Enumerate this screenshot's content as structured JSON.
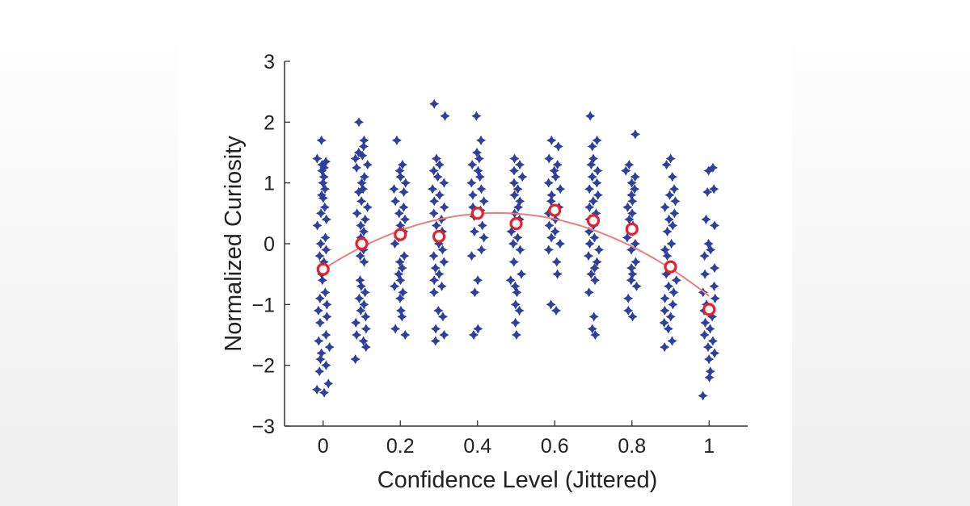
{
  "chart_data": {
    "type": "scatter",
    "xlabel": "Confidence Level (Jittered)",
    "ylabel": "Normalized Curiosity",
    "xlim": [
      -0.1,
      1.1
    ],
    "ylim": [
      -3,
      3
    ],
    "x_ticks": [
      0,
      0.2,
      0.4,
      0.6,
      0.8,
      1
    ],
    "x_tick_labels": [
      "0",
      "0.2",
      "0.4",
      "0.6",
      "0.8",
      "1"
    ],
    "y_ticks": [
      -3,
      -2,
      -1,
      0,
      1,
      2,
      3
    ],
    "y_tick_labels": [
      "−3",
      "−2",
      "−1",
      "0",
      "1",
      "2",
      "3"
    ],
    "grid": false,
    "colors": {
      "scatter": "#2e3f9e",
      "means_stroke": "#e8202a",
      "fit_line": "#ec7d79"
    },
    "scatter_groups": [
      {
        "x": 0,
        "y": [
          1.7,
          1.4,
          1.35,
          1.3,
          1.25,
          1.2,
          1.1,
          1.0,
          0.9,
          0.8,
          0.75,
          0.6,
          0.5,
          0.4,
          0.3,
          0.1,
          0.0,
          -0.1,
          -0.2,
          -0.3,
          -0.5,
          -0.6,
          -0.8,
          -0.9,
          -1.0,
          -1.1,
          -1.2,
          -1.3,
          -1.5,
          -1.6,
          -1.7,
          -1.8,
          -1.9,
          -2.0,
          -2.1,
          -2.3,
          -2.4,
          -2.45
        ]
      },
      {
        "x": 0.1,
        "y": [
          2.0,
          1.7,
          1.6,
          1.5,
          1.45,
          1.4,
          1.3,
          1.25,
          1.1,
          1.0,
          0.9,
          0.85,
          0.7,
          0.6,
          0.5,
          0.4,
          0.3,
          0.2,
          0.1,
          -0.1,
          -0.2,
          -0.3,
          -0.6,
          -0.7,
          -0.8,
          -0.9,
          -1.0,
          -1.1,
          -1.2,
          -1.3,
          -1.4,
          -1.5,
          -1.6,
          -1.7,
          -1.9
        ]
      },
      {
        "x": 0.2,
        "y": [
          1.7,
          1.3,
          1.2,
          1.1,
          1.0,
          0.9,
          0.85,
          0.7,
          0.6,
          0.5,
          0.4,
          0.3,
          0.2,
          0.1,
          0.0,
          -0.2,
          -0.3,
          -0.4,
          -0.5,
          -0.6,
          -0.7,
          -0.8,
          -0.9,
          -1.1,
          -1.2,
          -1.4,
          -1.5
        ]
      },
      {
        "x": 0.3,
        "y": [
          2.3,
          2.1,
          1.4,
          1.3,
          1.2,
          1.1,
          1.0,
          0.9,
          0.8,
          0.7,
          0.6,
          0.5,
          0.4,
          0.3,
          0.2,
          0.1,
          0.0,
          -0.1,
          -0.2,
          -0.3,
          -0.4,
          -0.5,
          -0.6,
          -0.7,
          -0.8,
          -1.1,
          -1.2,
          -1.4,
          -1.5,
          -1.6
        ]
      },
      {
        "x": 0.4,
        "y": [
          2.1,
          1.7,
          1.5,
          1.4,
          1.3,
          1.2,
          1.1,
          1.0,
          0.9,
          0.8,
          0.7,
          0.6,
          0.55,
          0.45,
          0.3,
          0.2,
          0.1,
          -0.1,
          -0.2,
          -0.6,
          -0.8,
          -1.4,
          -1.5
        ]
      },
      {
        "x": 0.5,
        "y": [
          1.4,
          1.3,
          1.2,
          1.1,
          1.0,
          0.9,
          0.8,
          0.7,
          0.6,
          0.5,
          0.4,
          0.2,
          0.1,
          0.0,
          -0.1,
          -0.3,
          -0.5,
          -0.6,
          -0.7,
          -0.8,
          -1.0,
          -1.1,
          -1.3,
          -1.5
        ]
      },
      {
        "x": 0.6,
        "y": [
          1.7,
          1.6,
          1.4,
          1.3,
          1.2,
          1.1,
          1.0,
          0.9,
          0.8,
          0.7,
          0.6,
          0.5,
          0.4,
          0.3,
          0.2,
          0.1,
          0.0,
          -0.1,
          -0.3,
          -0.5,
          -1.0,
          -1.1
        ]
      },
      {
        "x": 0.7,
        "y": [
          2.1,
          1.7,
          1.6,
          1.4,
          1.3,
          1.2,
          1.1,
          1.0,
          0.9,
          0.8,
          0.7,
          0.6,
          0.5,
          0.4,
          0.3,
          0.2,
          0.1,
          0.0,
          -0.1,
          -0.2,
          -0.3,
          -0.4,
          -0.5,
          -0.6,
          -0.8,
          -1.2,
          -1.4,
          -1.5
        ]
      },
      {
        "x": 0.8,
        "y": [
          1.8,
          1.3,
          1.2,
          1.1,
          1.0,
          0.9,
          0.8,
          0.7,
          0.6,
          0.5,
          0.4,
          0.3,
          0.2,
          0.1,
          0.0,
          -0.1,
          -0.3,
          -0.4,
          -0.5,
          -0.6,
          -0.7,
          -0.9,
          -1.1,
          -1.2
        ]
      },
      {
        "x": 0.9,
        "y": [
          1.4,
          1.3,
          1.1,
          0.9,
          0.8,
          0.7,
          0.6,
          0.5,
          0.4,
          0.3,
          0.2,
          0.0,
          -0.1,
          -0.2,
          -0.4,
          -0.5,
          -0.6,
          -0.7,
          -0.8,
          -0.9,
          -1.0,
          -1.1,
          -1.2,
          -1.3,
          -1.4,
          -1.6,
          -1.7
        ]
      },
      {
        "x": 1.0,
        "y": [
          1.25,
          1.2,
          0.9,
          0.85,
          0.4,
          0.3,
          0.0,
          -0.1,
          -0.2,
          -0.4,
          -0.5,
          -0.7,
          -0.8,
          -0.9,
          -1.0,
          -1.1,
          -1.2,
          -1.3,
          -1.4,
          -1.5,
          -1.6,
          -1.7,
          -1.8,
          -1.9,
          -2.1,
          -2.2,
          -2.5
        ]
      }
    ],
    "means": {
      "x": [
        0,
        0.1,
        0.2,
        0.3,
        0.4,
        0.5,
        0.6,
        0.7,
        0.8,
        0.9,
        1.0
      ],
      "y": [
        -0.42,
        0.0,
        0.15,
        0.12,
        0.5,
        0.33,
        0.55,
        0.38,
        0.24,
        -0.38,
        -1.08
      ]
    },
    "fit": {
      "type": "quadratic",
      "x_range": [
        0,
        1
      ],
      "coefficients": [
        -0.42,
        4.1,
        -4.54
      ]
    }
  }
}
